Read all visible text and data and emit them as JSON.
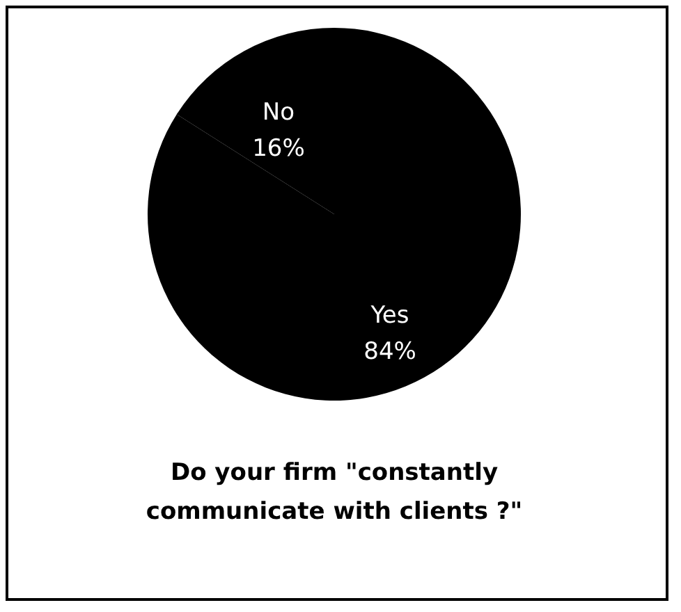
{
  "chart_data": {
    "type": "pie",
    "title": "Do your firm \"constantly\ncommunicate with clients ?\"",
    "categories": [
      "No",
      "Yes"
    ],
    "values": [
      16,
      84
    ],
    "colors": [
      "#000000",
      "#000000"
    ],
    "value_labels": [
      "16%",
      "84%"
    ]
  }
}
